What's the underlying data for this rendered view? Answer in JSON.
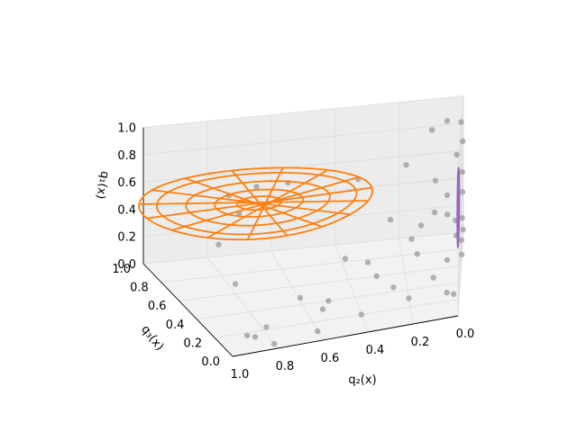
{
  "chart_data": {
    "type": "scatter",
    "title": "",
    "axes": {
      "x": {
        "label": "q$_2$(x)",
        "display_label": "q₂(x)",
        "range": [
          0.0,
          1.0
        ],
        "ticks": [
          "0.0",
          "0.2",
          "0.4",
          "0.6",
          "0.8",
          "1.0"
        ]
      },
      "y": {
        "label": "q$_3$(x)",
        "display_label": "q₃(x)",
        "range": [
          0.0,
          1.0
        ],
        "ticks": [
          "0.0",
          "0.2",
          "0.4",
          "0.6",
          "0.8",
          "1.0"
        ]
      },
      "z": {
        "label": "q$_1$(x)",
        "display_label": "q₁(x)",
        "range": [
          0.0,
          1.0
        ],
        "ticks": [
          "0.0",
          "0.2",
          "0.4",
          "0.6",
          "0.8",
          "1.0"
        ]
      }
    },
    "grid": true,
    "colors": {
      "points": "#999999",
      "orange": "#ff7f0e",
      "purple": "#9467bd",
      "pane": "#f2f2f2",
      "grid": "#dddddd"
    },
    "scatter_points_approx": [
      [
        0.0,
        0.6,
        1.0
      ],
      [
        0.05,
        0.75,
        0.95
      ],
      [
        0.1,
        0.85,
        0.85
      ],
      [
        0.0,
        0.9,
        0.72
      ],
      [
        0.02,
        0.95,
        0.6
      ],
      [
        0.0,
        0.8,
        0.55
      ],
      [
        0.05,
        0.7,
        0.45
      ],
      [
        0.0,
        0.85,
        0.38
      ],
      [
        0.02,
        0.6,
        0.32
      ],
      [
        0.0,
        0.75,
        0.25
      ],
      [
        0.05,
        0.9,
        0.2
      ],
      [
        0.0,
        0.65,
        0.15
      ],
      [
        0.02,
        0.8,
        0.1
      ],
      [
        0.0,
        0.95,
        0.05
      ],
      [
        0.05,
        0.55,
        0.08
      ],
      [
        0.0,
        0.7,
        0.02
      ],
      [
        0.1,
        0.5,
        0.0
      ],
      [
        0.2,
        0.3,
        0.0
      ],
      [
        0.4,
        0.2,
        0.0
      ],
      [
        0.6,
        0.1,
        0.0
      ],
      [
        0.8,
        0.05,
        0.0
      ],
      [
        0.9,
        0.1,
        0.05
      ],
      [
        0.3,
        0.6,
        0.0
      ],
      [
        0.5,
        0.4,
        0.0
      ],
      [
        0.15,
        0.8,
        0.0
      ],
      [
        0.05,
        0.3,
        0.0
      ],
      [
        0.25,
        0.45,
        0.0
      ],
      [
        0.9,
        0.0,
        0.1
      ],
      [
        0.7,
        0.0,
        0.3
      ],
      [
        0.5,
        0.0,
        0.5
      ],
      [
        0.3,
        0.0,
        0.7
      ],
      [
        0.1,
        0.0,
        0.9
      ],
      [
        0.6,
        0.0,
        0.2
      ],
      [
        0.4,
        0.0,
        0.45
      ],
      [
        0.85,
        0.0,
        0.15
      ],
      [
        0.8,
        0.3,
        0.9
      ],
      [
        0.9,
        0.2,
        0.8
      ],
      [
        0.7,
        0.2,
        0.95
      ],
      [
        0.2,
        0.5,
        0.8
      ],
      [
        0.4,
        0.3,
        0.85
      ],
      [
        0.85,
        0.5,
        0.75
      ],
      [
        0.1,
        0.2,
        0.6
      ],
      [
        0.2,
        0.1,
        0.5
      ],
      [
        0.15,
        0.35,
        0.45
      ],
      [
        0.95,
        0.1,
        0.4
      ],
      [
        0.95,
        0.3,
        0.55
      ],
      [
        0.02,
        0.05,
        0.12
      ]
    ],
    "curves": [
      {
        "color": "#ff7f0e",
        "shape": "concentric rings with radial spokes",
        "plane": "q1 ≈ 0.7",
        "center": [
          0.75,
          0.45,
          0.7
        ],
        "radii": [
          0.08,
          0.16,
          0.26,
          0.36,
          0.42
        ],
        "spokes": 8
      },
      {
        "color": "#9467bd",
        "shape": "concentric rings",
        "plane": "q2 ≈ 0.0",
        "center": [
          0.0,
          0.05,
          0.68
        ],
        "radii": [
          0.04,
          0.08,
          0.13,
          0.18
        ]
      }
    ]
  }
}
